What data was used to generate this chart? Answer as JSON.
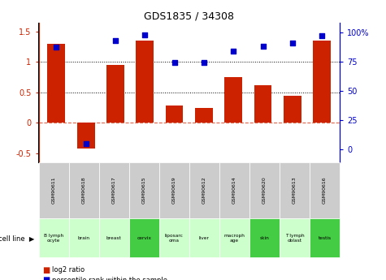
{
  "title": "GDS1835 / 34308",
  "gsm_labels": [
    "GSM90611",
    "GSM90618",
    "GSM90617",
    "GSM90615",
    "GSM90619",
    "GSM90612",
    "GSM90614",
    "GSM90620",
    "GSM90613",
    "GSM90616"
  ],
  "cell_labels": [
    "B lymph\nocyte",
    "brain",
    "breast",
    "cervix",
    "liposarc\noma",
    "liver",
    "macroph\nage",
    "skin",
    "T lymph\noblast",
    "testis"
  ],
  "log2_ratio": [
    1.3,
    -0.42,
    0.95,
    1.35,
    0.28,
    0.25,
    0.75,
    0.62,
    0.45,
    1.35
  ],
  "percentile_rank": [
    87,
    5,
    93,
    98,
    74,
    74,
    84,
    88,
    91,
    97
  ],
  "bar_color": "#cc2200",
  "dot_color": "#0000cc",
  "cell_bg_light": "#ccffcc",
  "cell_bg_dark": "#44cc44",
  "gsm_bg": "#cccccc",
  "ylim_left": [
    -0.65,
    1.65
  ],
  "ylim_right": [
    -10.8333,
    108.333
  ],
  "yticks_left": [
    -0.5,
    0.0,
    0.5,
    1.0,
    1.5
  ],
  "ytick_labels_left": [
    "-0.5",
    "0",
    "0.5",
    "1",
    "1.5"
  ],
  "yticks_right": [
    0,
    25,
    50,
    75,
    100
  ],
  "ytick_labels_right": [
    "0",
    "25",
    "50",
    "75",
    "100%"
  ],
  "hlines_dotted": [
    0.5,
    1.0
  ],
  "hline_dashed": 0.0,
  "dark_cell_indices": [
    3,
    7,
    9
  ],
  "legend_red": "log2 ratio",
  "legend_blue": "percentile rank within the sample"
}
